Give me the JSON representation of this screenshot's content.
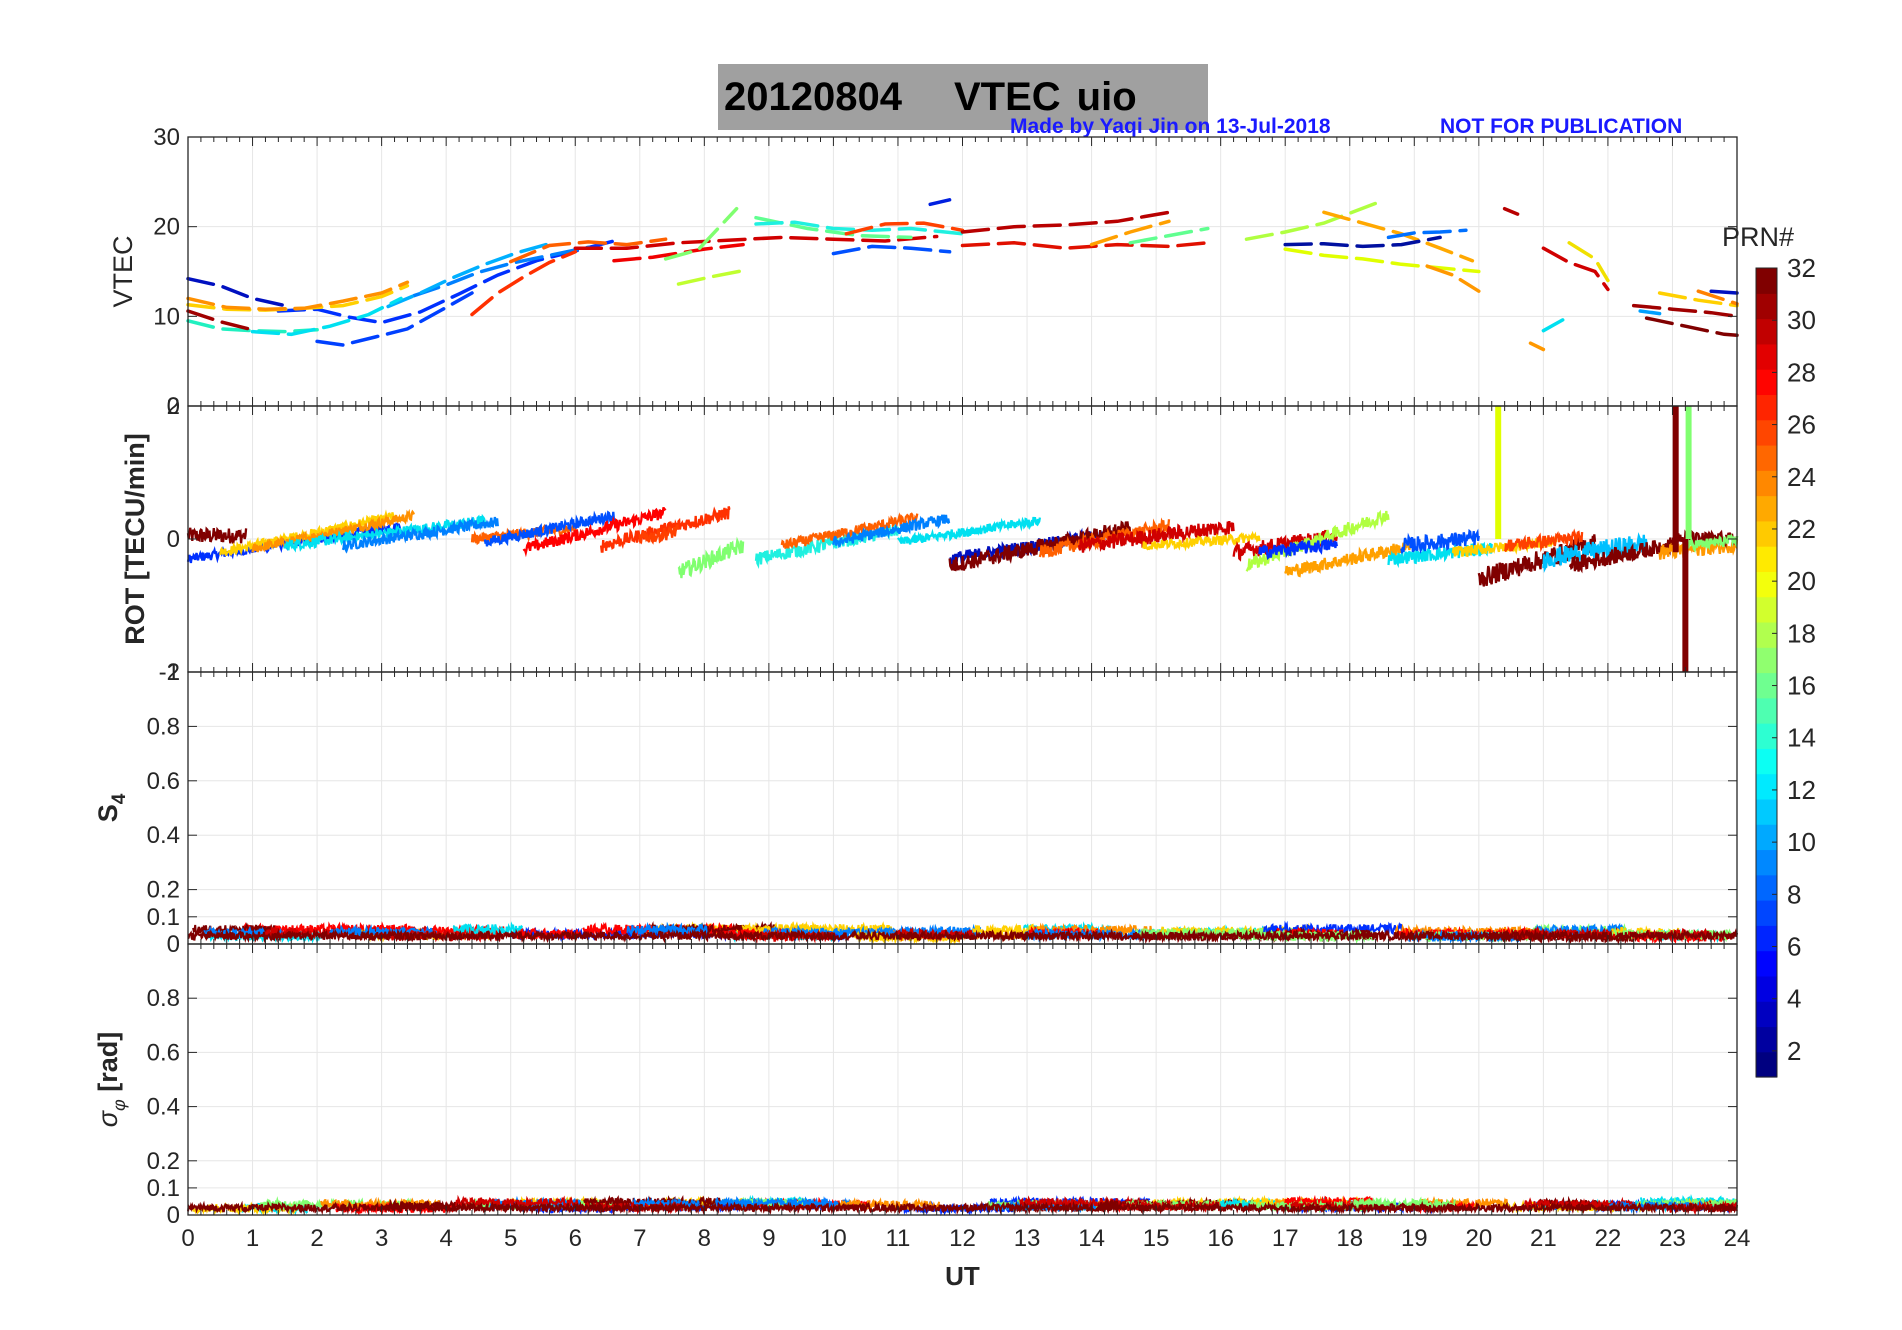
{
  "figure": {
    "title_date": "20120804",
    "title_quantity": "VTEC",
    "title_station": "uio",
    "watermark_author": "Made by Yaqi Jin on 13-Jul-2018",
    "watermark_notice": "NOT FOR PUBLICATION",
    "colors": {
      "title_box": "#a0a0a0",
      "watermark": "#1a1aff",
      "grid": "#e6e6e6"
    }
  },
  "chart_data": [
    {
      "type": "line",
      "panel": "vtec",
      "ylabel": "VTEC",
      "ylim": [
        0,
        30
      ],
      "yticks": [
        "0",
        "10",
        "20",
        "30"
      ],
      "xlim": [
        0,
        24
      ],
      "legend": "colorbar right",
      "series": [
        {
          "prn": 3,
          "color": "#0030ff",
          "x": [
            1.4,
            2.0,
            2.5,
            3.0,
            3.6,
            4.2,
            4.8,
            5.4,
            6.0,
            6.6
          ],
          "y": [
            10.6,
            10.8,
            9.9,
            9.3,
            10.5,
            12.5,
            14.6,
            16.2,
            17.3,
            18.4
          ]
        },
        {
          "prn": 5,
          "color": "#0040ff",
          "x": [
            2.0,
            2.4,
            2.9,
            3.4,
            3.9,
            4.4
          ],
          "y": [
            7.2,
            6.8,
            7.7,
            8.6,
            10.6,
            12.6
          ]
        },
        {
          "prn": 9,
          "color": "#0080ff",
          "x": [
            3.5,
            4.0,
            4.5,
            5.0,
            5.6,
            6.2
          ],
          "y": [
            12.3,
            13.5,
            14.9,
            15.9,
            16.8,
            17.7
          ]
        },
        {
          "prn": 11,
          "color": "#00b0ff",
          "x": [
            3.1,
            3.6,
            4.1,
            4.6,
            5.1,
            5.6
          ],
          "y": [
            11.1,
            12.6,
            14.3,
            15.8,
            17.1,
            18.1
          ]
        },
        {
          "prn": 26,
          "color": "#ff3000",
          "x": [
            4.4,
            4.8,
            5.2,
            5.6,
            6.0
          ],
          "y": [
            10.2,
            12.6,
            14.4,
            16.0,
            17.2
          ]
        },
        {
          "prn": 24,
          "color": "#ff6000",
          "x": [
            5.0,
            5.6,
            6.2,
            6.8,
            7.4
          ],
          "y": [
            16.1,
            17.9,
            18.3,
            18.0,
            18.6
          ]
        },
        {
          "prn": 14,
          "color": "#20f0c0",
          "x": [
            0.0,
            0.5,
            1.0,
            1.5,
            2.0
          ],
          "y": [
            9.5,
            8.6,
            8.4,
            8.3,
            8.5
          ]
        },
        {
          "prn": 12,
          "color": "#00e0f0",
          "x": [
            1.0,
            1.6,
            2.2,
            2.8,
            3.3
          ],
          "y": [
            8.3,
            8.0,
            8.9,
            10.2,
            12.0
          ]
        },
        {
          "prn": 21,
          "color": "#ffd000",
          "x": [
            0.0,
            0.6,
            1.2,
            1.8,
            2.4,
            3.0,
            3.4
          ],
          "y": [
            11.3,
            10.8,
            10.7,
            10.9,
            11.2,
            12.2,
            13.4
          ]
        },
        {
          "prn": 23,
          "color": "#ff9000",
          "x": [
            0.0,
            0.6,
            1.2,
            1.8,
            2.4,
            3.0,
            3.4
          ],
          "y": [
            12.0,
            11.0,
            10.8,
            10.9,
            11.7,
            12.6,
            13.8
          ]
        },
        {
          "prn": 2,
          "color": "#0010c0",
          "x": [
            0.0,
            0.5,
            1.0,
            1.5
          ],
          "y": [
            14.2,
            13.4,
            12.0,
            11.2
          ]
        },
        {
          "prn": 31,
          "color": "#a00000",
          "x": [
            0.0,
            0.5,
            1.0
          ],
          "y": [
            10.6,
            9.4,
            8.5
          ]
        },
        {
          "prn": 29,
          "color": "#d00000",
          "x": [
            6.0,
            6.8,
            7.6,
            8.4,
            9.2,
            10.0,
            10.8,
            11.6
          ],
          "y": [
            17.6,
            17.6,
            18.2,
            18.5,
            18.8,
            18.6,
            18.4,
            18.9
          ]
        },
        {
          "prn": 28,
          "color": "#f00000",
          "x": [
            6.6,
            7.2,
            8.0,
            8.6
          ],
          "y": [
            16.2,
            16.6,
            17.5,
            18.0
          ]
        },
        {
          "prn": 19,
          "color": "#c0ff30",
          "x": [
            7.6,
            8.1,
            8.6
          ],
          "y": [
            13.6,
            14.4,
            15.1
          ]
        },
        {
          "prn": 17,
          "color": "#80ff70",
          "x": [
            7.4,
            7.9,
            8.5
          ],
          "y": [
            16.4,
            17.4,
            22.0
          ]
        },
        {
          "prn": 16,
          "color": "#60ff90",
          "x": [
            8.8,
            9.6,
            10.4,
            11.2
          ],
          "y": [
            21.0,
            19.8,
            19.0,
            18.8
          ]
        },
        {
          "prn": 13,
          "color": "#20f0e0",
          "x": [
            8.8,
            9.4,
            10.0,
            10.6,
            11.2,
            12.0
          ],
          "y": [
            20.3,
            20.5,
            19.8,
            19.6,
            19.8,
            19.2
          ]
        },
        {
          "prn": 25,
          "color": "#ff4000",
          "x": [
            10.2,
            10.8,
            11.4,
            12.0
          ],
          "y": [
            19.2,
            20.3,
            20.4,
            19.6
          ]
        },
        {
          "prn": 6,
          "color": "#0050ff",
          "x": [
            10.0,
            10.6,
            11.2,
            11.8
          ],
          "y": [
            17.0,
            17.8,
            17.6,
            17.2
          ]
        },
        {
          "prn": 4,
          "color": "#0020e0",
          "x": [
            11.5,
            11.8
          ],
          "y": [
            22.5,
            23.0
          ]
        },
        {
          "prn": 30,
          "color": "#b80000",
          "x": [
            12.0,
            12.8,
            13.6,
            14.4,
            15.2
          ],
          "y": [
            19.4,
            20.0,
            20.2,
            20.6,
            21.6
          ]
        },
        {
          "prn": 27,
          "color": "#e01000",
          "x": [
            12.0,
            12.8,
            13.6,
            14.4,
            15.2,
            15.8
          ],
          "y": [
            17.9,
            18.2,
            17.6,
            18.0,
            17.8,
            18.2
          ]
        },
        {
          "prn": 22,
          "color": "#ffa000",
          "x": [
            14.0,
            14.6,
            15.2
          ],
          "y": [
            18.0,
            19.4,
            20.6
          ]
        },
        {
          "prn": 15,
          "color": "#60ff90",
          "x": [
            14.6,
            15.2,
            15.8
          ],
          "y": [
            18.2,
            19.0,
            19.8
          ]
        },
        {
          "prn": 18,
          "color": "#b0ff40",
          "x": [
            16.4,
            17.0,
            17.6,
            18.4
          ],
          "y": [
            18.6,
            19.4,
            20.4,
            22.6
          ]
        },
        {
          "prn": 20,
          "color": "#e0ff00",
          "x": [
            17.0,
            17.6,
            18.2,
            18.8,
            19.4,
            20.0
          ],
          "y": [
            17.5,
            16.8,
            16.4,
            15.8,
            15.4,
            15.0
          ]
        },
        {
          "prn": 22,
          "color": "#ffa800",
          "x": [
            17.6,
            18.2,
            18.8,
            19.4,
            19.9
          ],
          "y": [
            21.6,
            20.4,
            19.2,
            17.6,
            16.2
          ]
        },
        {
          "prn": 1,
          "color": "#0010a0",
          "x": [
            17.0,
            17.6,
            18.2,
            18.8,
            19.4
          ],
          "y": [
            18.0,
            18.1,
            17.8,
            18.0,
            18.8
          ]
        },
        {
          "prn": 8,
          "color": "#0070ff",
          "x": [
            18.6,
            19.0,
            19.4,
            19.8
          ],
          "y": [
            18.8,
            19.3,
            19.4,
            19.6
          ]
        },
        {
          "prn": 23,
          "color": "#ff9800",
          "x": [
            19.2,
            19.6,
            20.0
          ],
          "y": [
            15.6,
            14.6,
            12.8
          ]
        },
        {
          "prn": 30,
          "color": "#b80000",
          "x": [
            20.4,
            20.6
          ],
          "y": [
            22.0,
            21.4
          ]
        },
        {
          "prn": 29,
          "color": "#d00000",
          "x": [
            21.0,
            21.4,
            21.8,
            22.0
          ],
          "y": [
            17.6,
            16.0,
            15.0,
            13.0
          ]
        },
        {
          "prn": 12,
          "color": "#00e0f0",
          "x": [
            21.0,
            21.3
          ],
          "y": [
            8.4,
            9.6
          ]
        },
        {
          "prn": 20,
          "color": "#f0e000",
          "x": [
            21.4,
            21.8,
            22.0
          ],
          "y": [
            18.2,
            16.4,
            14.0
          ]
        },
        {
          "prn": 23,
          "color": "#ff9800",
          "x": [
            20.8,
            21.0
          ],
          "y": [
            7.0,
            6.3
          ]
        },
        {
          "prn": 31,
          "color": "#a00000",
          "x": [
            22.4,
            23.0,
            23.6,
            24.0
          ],
          "y": [
            11.2,
            10.8,
            10.4,
            10.0
          ]
        },
        {
          "prn": 32,
          "color": "#800000",
          "x": [
            22.6,
            23.2,
            23.8,
            24.0
          ],
          "y": [
            9.8,
            8.9,
            8.0,
            7.9
          ]
        },
        {
          "prn": 21,
          "color": "#ffd000",
          "x": [
            22.8,
            23.4,
            24.0
          ],
          "y": [
            12.6,
            11.8,
            11.2
          ]
        },
        {
          "prn": 24,
          "color": "#ff8000",
          "x": [
            23.4,
            24.0
          ],
          "y": [
            12.8,
            11.4
          ]
        },
        {
          "prn": 2,
          "color": "#0010c0",
          "x": [
            23.6,
            24.0
          ],
          "y": [
            12.8,
            12.6
          ]
        },
        {
          "prn": 10,
          "color": "#00a0ff",
          "x": [
            22.5,
            22.8
          ],
          "y": [
            10.6,
            10.3
          ]
        }
      ]
    },
    {
      "type": "line",
      "panel": "rot",
      "ylabel": "ROT [TECU/min]",
      "ylim": [
        -2,
        2
      ],
      "yticks": [
        "-2",
        "0",
        "2"
      ],
      "xlim": [
        0,
        24
      ],
      "spikes": [
        {
          "x": 20.3,
          "y0": 0.0,
          "y1": 2.0,
          "color": "#e0ff00"
        },
        {
          "x": 23.05,
          "y0": -0.2,
          "y1": 2.0,
          "color": "#800000"
        },
        {
          "x": 23.2,
          "y0": 0.0,
          "y1": -2.0,
          "color": "#800000"
        },
        {
          "x": 23.25,
          "y0": 0.0,
          "y1": 2.0,
          "color": "#80ff70"
        }
      ]
    },
    {
      "type": "line",
      "panel": "s4",
      "ylabel": "S4",
      "ylim": [
        0,
        1
      ],
      "yticks": [
        "0",
        "0.1",
        "0.2",
        "0.4",
        "0.6",
        "0.8",
        "1"
      ],
      "xlim": [
        0,
        24
      ],
      "typical_level": 0.05
    },
    {
      "type": "line",
      "panel": "sigma_phi",
      "ylabel": "σφ [rad]",
      "ylim": [
        0,
        1
      ],
      "yticks": [
        "0",
        "0.1",
        "0.2",
        "0.4",
        "0.6",
        "0.8"
      ],
      "xlim": [
        0,
        24
      ],
      "xlabel": "UT",
      "xticks": [
        "0",
        "1",
        "2",
        "3",
        "4",
        "5",
        "6",
        "7",
        "8",
        "9",
        "10",
        "11",
        "12",
        "13",
        "14",
        "15",
        "16",
        "17",
        "18",
        "19",
        "20",
        "21",
        "22",
        "23",
        "24"
      ],
      "typical_level": 0.045
    }
  ],
  "colorbar": {
    "title": "PRN#",
    "range": [
      1,
      32
    ],
    "ticks": [
      "2",
      "4",
      "6",
      "8",
      "10",
      "12",
      "14",
      "16",
      "18",
      "20",
      "22",
      "24",
      "26",
      "28",
      "30",
      "32"
    ]
  }
}
